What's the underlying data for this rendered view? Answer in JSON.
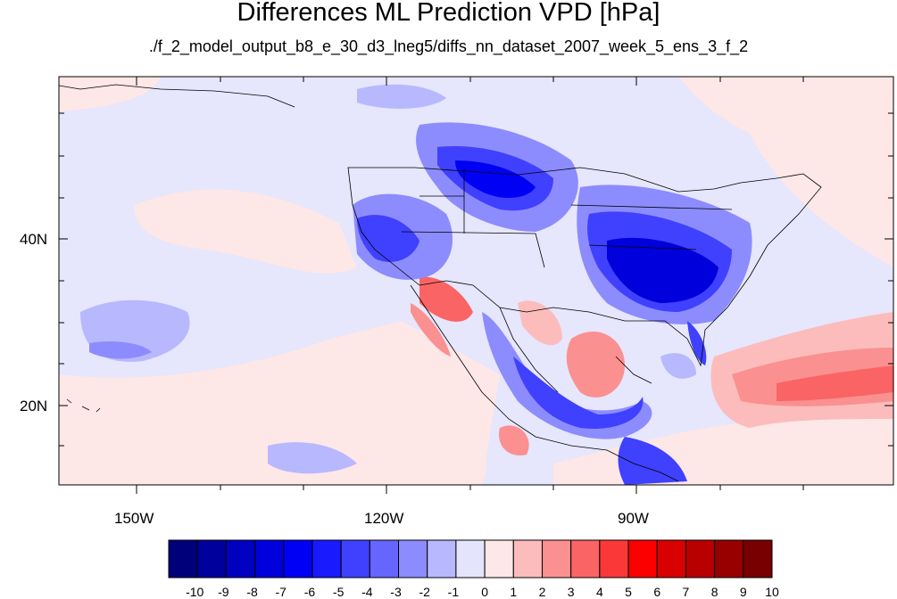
{
  "title": "Differences ML Prediction VPD [hPa]",
  "subtitle": "./f_2_model_output_b8_e_30_d3_lneg5/diffs_nn_dataset_2007_week_5_ens_3_f_2",
  "axes": {
    "x_ticks": [
      {
        "label": "150W",
        "value": -150
      },
      {
        "label": "120W",
        "value": -120
      },
      {
        "label": "90W",
        "value": -90
      }
    ],
    "y_ticks": [
      {
        "label": "40N",
        "value": 40
      },
      {
        "label": "20N",
        "value": 20
      }
    ],
    "lon_range": [
      -159.5,
      -60
    ],
    "lat_range": [
      11,
      59
    ]
  },
  "colorbar": {
    "labels": [
      "-10",
      "-9",
      "-8",
      "-7",
      "-6",
      "-5",
      "-4",
      "-3",
      "-2",
      "-1",
      "0",
      "1",
      "2",
      "3",
      "4",
      "5",
      "6",
      "7",
      "8",
      "9",
      "10"
    ],
    "colors": [
      "#00007a",
      "#00009c",
      "#0000c0",
      "#0000dd",
      "#0000f5",
      "#1a1aff",
      "#4040ff",
      "#6666ff",
      "#8c8cff",
      "#b8b8ff",
      "#e4e4fc",
      "#fde7e7",
      "#fcbcbc",
      "#fb9090",
      "#fb6464",
      "#fb3838",
      "#fc0000",
      "#d80000",
      "#b80000",
      "#980000",
      "#780000"
    ]
  }
}
